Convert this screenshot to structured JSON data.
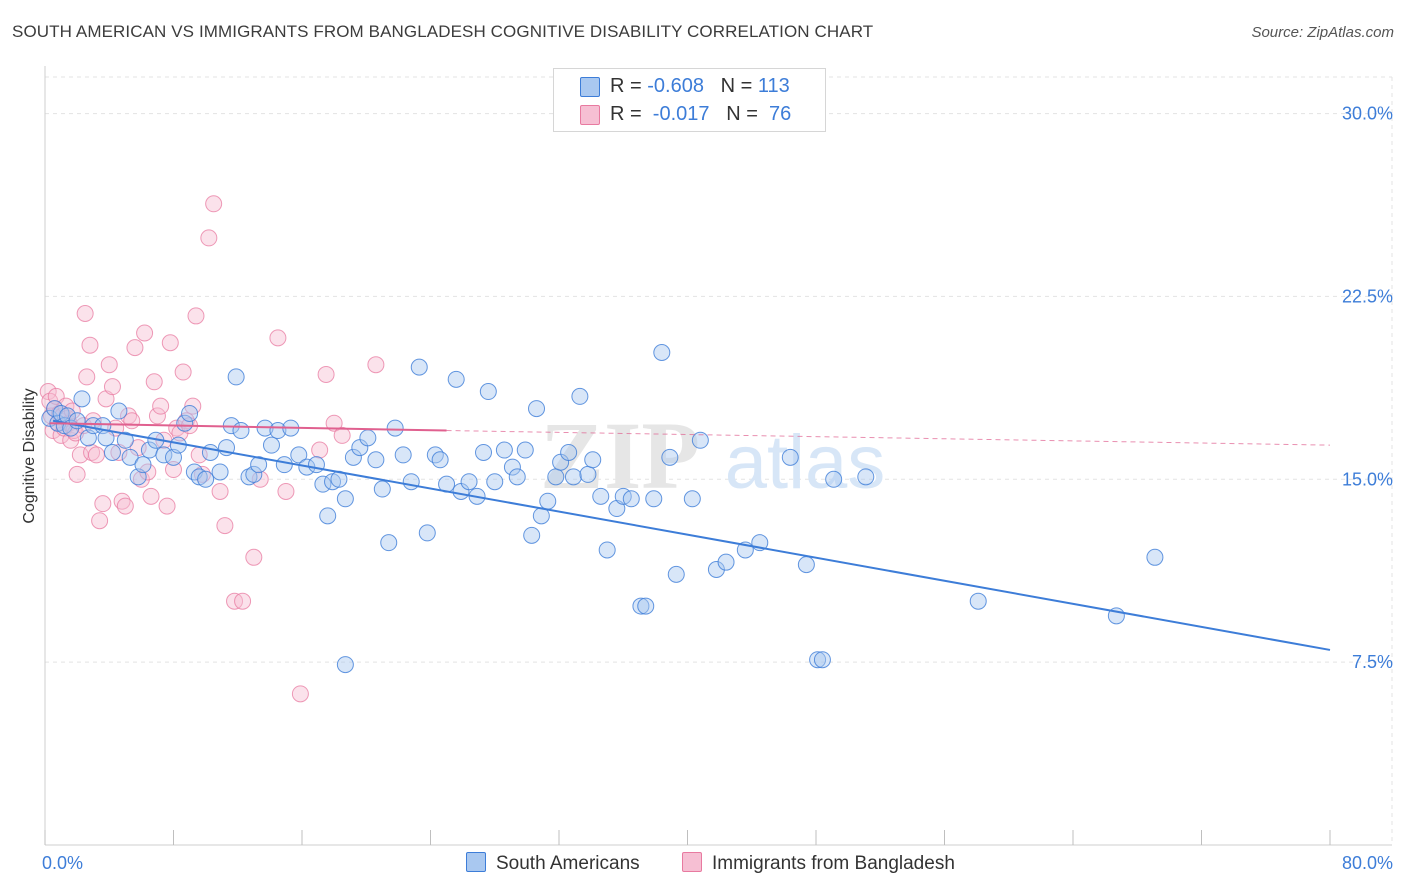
{
  "title": "SOUTH AMERICAN VS IMMIGRANTS FROM BANGLADESH COGNITIVE DISABILITY CORRELATION CHART",
  "source": "Source: ZipAtlas.com",
  "legend": {
    "rows": [
      {
        "r_label": "R = ",
        "r_value": "-0.608",
        "n_label": "N = ",
        "n_value": "113"
      },
      {
        "r_label": "R = ",
        "r_value": " -0.017",
        "n_label": "N = ",
        "n_value": " 76"
      }
    ]
  },
  "bottom_legend": [
    "South Americans",
    "Immigrants from Bangladesh"
  ],
  "watermark": {
    "zip": "ZIP",
    "atlas": "atlas"
  },
  "colors": {
    "blue": "#3d7dd8",
    "blue_fill": "#a9c8f0",
    "pink": "#e87aa0",
    "pink_fill": "#f6bfd3",
    "pink_line": "#e0608f"
  },
  "chart_data": {
    "type": "scatter",
    "title": "SOUTH AMERICAN VS IMMIGRANTS FROM BANGLADESH COGNITIVE DISABILITY CORRELATION CHART",
    "xlabel": "",
    "ylabel": "Cognitive Disability",
    "xlim": [
      0,
      80
    ],
    "ylim": [
      0,
      31.5
    ],
    "x_tick_labels": [
      "0.0%",
      "80.0%"
    ],
    "y_ticks": [
      7.5,
      15.0,
      22.5,
      30.0
    ],
    "y_tick_labels": [
      "7.5%",
      "15.0%",
      "22.5%",
      "30.0%"
    ],
    "series": [
      {
        "name": "South Americans",
        "R": -0.608,
        "N": 113,
        "trend": {
          "x0": 0.5,
          "y0": 17.4,
          "x1": 80,
          "y1": 8.0
        },
        "points": [
          [
            0.3,
            17.5
          ],
          [
            0.6,
            17.9
          ],
          [
            0.8,
            17.3
          ],
          [
            1.0,
            17.7
          ],
          [
            1.2,
            17.2
          ],
          [
            1.4,
            17.6
          ],
          [
            1.6,
            17.1
          ],
          [
            2.0,
            17.4
          ],
          [
            2.3,
            18.3
          ],
          [
            2.7,
            16.7
          ],
          [
            3.0,
            17.2
          ],
          [
            3.6,
            17.2
          ],
          [
            3.8,
            16.7
          ],
          [
            4.2,
            16.1
          ],
          [
            4.6,
            17.8
          ],
          [
            5.0,
            16.6
          ],
          [
            5.3,
            15.9
          ],
          [
            5.8,
            15.1
          ],
          [
            6.1,
            15.6
          ],
          [
            6.5,
            16.2
          ],
          [
            6.9,
            16.6
          ],
          [
            7.4,
            16.0
          ],
          [
            8.0,
            15.9
          ],
          [
            8.3,
            16.4
          ],
          [
            8.7,
            17.3
          ],
          [
            9.0,
            17.7
          ],
          [
            9.3,
            15.3
          ],
          [
            9.6,
            15.1
          ],
          [
            10.0,
            15.0
          ],
          [
            10.3,
            16.1
          ],
          [
            10.9,
            15.3
          ],
          [
            11.3,
            16.3
          ],
          [
            11.6,
            17.2
          ],
          [
            11.9,
            19.2
          ],
          [
            12.2,
            17.0
          ],
          [
            12.7,
            15.1
          ],
          [
            13.0,
            15.2
          ],
          [
            13.3,
            15.6
          ],
          [
            13.7,
            17.1
          ],
          [
            14.1,
            16.4
          ],
          [
            14.5,
            17.0
          ],
          [
            14.9,
            15.6
          ],
          [
            15.3,
            17.1
          ],
          [
            15.8,
            16.0
          ],
          [
            16.3,
            15.5
          ],
          [
            16.9,
            15.6
          ],
          [
            17.3,
            14.8
          ],
          [
            17.6,
            13.5
          ],
          [
            17.9,
            14.9
          ],
          [
            18.3,
            15.0
          ],
          [
            18.7,
            14.2
          ],
          [
            19.2,
            15.9
          ],
          [
            19.6,
            16.3
          ],
          [
            20.1,
            16.7
          ],
          [
            20.6,
            15.8
          ],
          [
            21.0,
            14.6
          ],
          [
            21.4,
            12.4
          ],
          [
            21.8,
            17.1
          ],
          [
            22.3,
            16.0
          ],
          [
            22.8,
            14.9
          ],
          [
            23.3,
            19.6
          ],
          [
            23.8,
            12.8
          ],
          [
            24.3,
            16.0
          ],
          [
            24.6,
            15.8
          ],
          [
            25.0,
            14.8
          ],
          [
            25.6,
            19.1
          ],
          [
            25.9,
            14.5
          ],
          [
            26.4,
            14.9
          ],
          [
            26.9,
            14.3
          ],
          [
            27.3,
            16.1
          ],
          [
            27.6,
            18.6
          ],
          [
            28.0,
            14.9
          ],
          [
            28.6,
            16.2
          ],
          [
            29.1,
            15.5
          ],
          [
            29.4,
            15.1
          ],
          [
            29.9,
            16.2
          ],
          [
            30.3,
            12.7
          ],
          [
            30.6,
            17.9
          ],
          [
            30.9,
            13.5
          ],
          [
            31.3,
            14.1
          ],
          [
            31.8,
            15.1
          ],
          [
            32.1,
            15.7
          ],
          [
            32.6,
            16.1
          ],
          [
            32.9,
            15.1
          ],
          [
            33.3,
            18.4
          ],
          [
            33.8,
            15.2
          ],
          [
            34.1,
            15.8
          ],
          [
            34.6,
            14.3
          ],
          [
            35.0,
            12.1
          ],
          [
            35.6,
            13.8
          ],
          [
            36.0,
            14.3
          ],
          [
            36.5,
            14.2
          ],
          [
            37.1,
            9.8
          ],
          [
            37.4,
            9.8
          ],
          [
            37.9,
            14.2
          ],
          [
            38.4,
            20.2
          ],
          [
            38.9,
            15.9
          ],
          [
            39.3,
            11.1
          ],
          [
            40.3,
            14.2
          ],
          [
            40.8,
            16.6
          ],
          [
            41.8,
            11.3
          ],
          [
            42.4,
            11.6
          ],
          [
            43.6,
            12.1
          ],
          [
            44.5,
            12.4
          ],
          [
            46.4,
            15.9
          ],
          [
            47.4,
            11.5
          ],
          [
            48.1,
            7.6
          ],
          [
            48.4,
            7.6
          ],
          [
            49.1,
            15.0
          ],
          [
            51.1,
            15.1
          ],
          [
            58.1,
            10.0
          ],
          [
            66.7,
            9.4
          ],
          [
            69.1,
            11.8
          ],
          [
            18.7,
            7.4
          ]
        ]
      },
      {
        "name": "Immigrants from Bangladesh",
        "R": -0.017,
        "N": 76,
        "trend": {
          "x0": 0.3,
          "y0": 17.3,
          "x1": 25,
          "y1": 17.0,
          "dash_x1": 80,
          "dash_y1": 16.4
        },
        "points": [
          [
            0.2,
            18.6
          ],
          [
            0.3,
            18.2
          ],
          [
            0.4,
            17.6
          ],
          [
            0.5,
            17.0
          ],
          [
            0.6,
            17.9
          ],
          [
            0.7,
            18.4
          ],
          [
            0.8,
            17.3
          ],
          [
            0.9,
            17.7
          ],
          [
            1.0,
            16.8
          ],
          [
            1.1,
            17.6
          ],
          [
            1.2,
            17.1
          ],
          [
            1.3,
            18.0
          ],
          [
            1.4,
            17.5
          ],
          [
            1.5,
            17.3
          ],
          [
            1.6,
            16.6
          ],
          [
            1.7,
            17.8
          ],
          [
            1.8,
            17.0
          ],
          [
            1.9,
            16.9
          ],
          [
            2.0,
            15.2
          ],
          [
            2.2,
            16.0
          ],
          [
            2.4,
            17.2
          ],
          [
            2.6,
            19.2
          ],
          [
            2.8,
            20.5
          ],
          [
            2.9,
            16.1
          ],
          [
            3.0,
            17.4
          ],
          [
            3.2,
            16.0
          ],
          [
            3.4,
            13.3
          ],
          [
            3.6,
            14.0
          ],
          [
            3.8,
            18.3
          ],
          [
            4.0,
            19.7
          ],
          [
            4.2,
            18.8
          ],
          [
            4.4,
            17.1
          ],
          [
            4.6,
            16.1
          ],
          [
            4.8,
            14.1
          ],
          [
            5.0,
            13.9
          ],
          [
            5.2,
            17.6
          ],
          [
            5.4,
            17.4
          ],
          [
            5.6,
            20.4
          ],
          [
            5.8,
            16.3
          ],
          [
            6.0,
            15.0
          ],
          [
            6.2,
            21.0
          ],
          [
            6.4,
            15.3
          ],
          [
            6.6,
            14.3
          ],
          [
            6.8,
            19.0
          ],
          [
            7.0,
            17.6
          ],
          [
            7.2,
            18.0
          ],
          [
            7.4,
            16.6
          ],
          [
            7.6,
            13.9
          ],
          [
            7.8,
            20.6
          ],
          [
            8.0,
            15.4
          ],
          [
            8.2,
            17.1
          ],
          [
            8.4,
            16.9
          ],
          [
            8.6,
            19.4
          ],
          [
            8.8,
            17.4
          ],
          [
            9.0,
            17.2
          ],
          [
            9.2,
            18.0
          ],
          [
            9.4,
            21.7
          ],
          [
            9.6,
            16.0
          ],
          [
            9.8,
            15.2
          ],
          [
            10.2,
            24.9
          ],
          [
            10.5,
            26.3
          ],
          [
            10.9,
            14.5
          ],
          [
            11.2,
            13.1
          ],
          [
            11.8,
            10.0
          ],
          [
            12.3,
            10.0
          ],
          [
            13.0,
            11.8
          ],
          [
            13.4,
            15.0
          ],
          [
            14.5,
            20.8
          ],
          [
            15.0,
            14.5
          ],
          [
            15.9,
            6.2
          ],
          [
            17.1,
            16.2
          ],
          [
            17.5,
            19.3
          ],
          [
            18.0,
            17.3
          ],
          [
            18.5,
            16.8
          ],
          [
            20.6,
            19.7
          ],
          [
            2.5,
            21.8
          ]
        ]
      }
    ]
  }
}
